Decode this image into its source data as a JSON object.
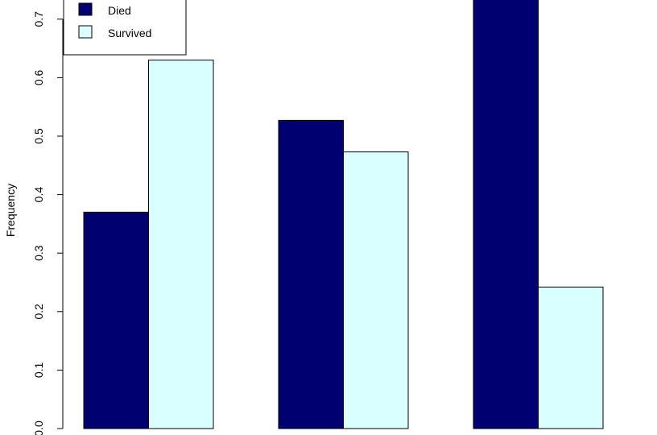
{
  "chart_data": {
    "type": "bar",
    "categories": [
      "",
      "",
      ""
    ],
    "series": [
      {
        "name": "Died",
        "values": [
          0.37,
          0.527,
          0.758
        ],
        "color": "#000070"
      },
      {
        "name": "Survived",
        "values": [
          0.63,
          0.473,
          0.242
        ],
        "color": "#D9FFFF"
      }
    ],
    "title": "",
    "xlabel": "",
    "ylabel": "Frequency",
    "ylim": [
      0,
      0.75
    ],
    "yticks": [
      0.0,
      0.1,
      0.2,
      0.3,
      0.4,
      0.5,
      0.6,
      0.7
    ],
    "ytick_labels": [
      "0.0",
      "0.1",
      "0.2",
      "0.3",
      "0.4",
      "0.5",
      "0.6",
      "0.7"
    ],
    "grid": false,
    "legend": {
      "placement": "top-left",
      "entries": [
        "Died",
        "Survived"
      ]
    }
  }
}
